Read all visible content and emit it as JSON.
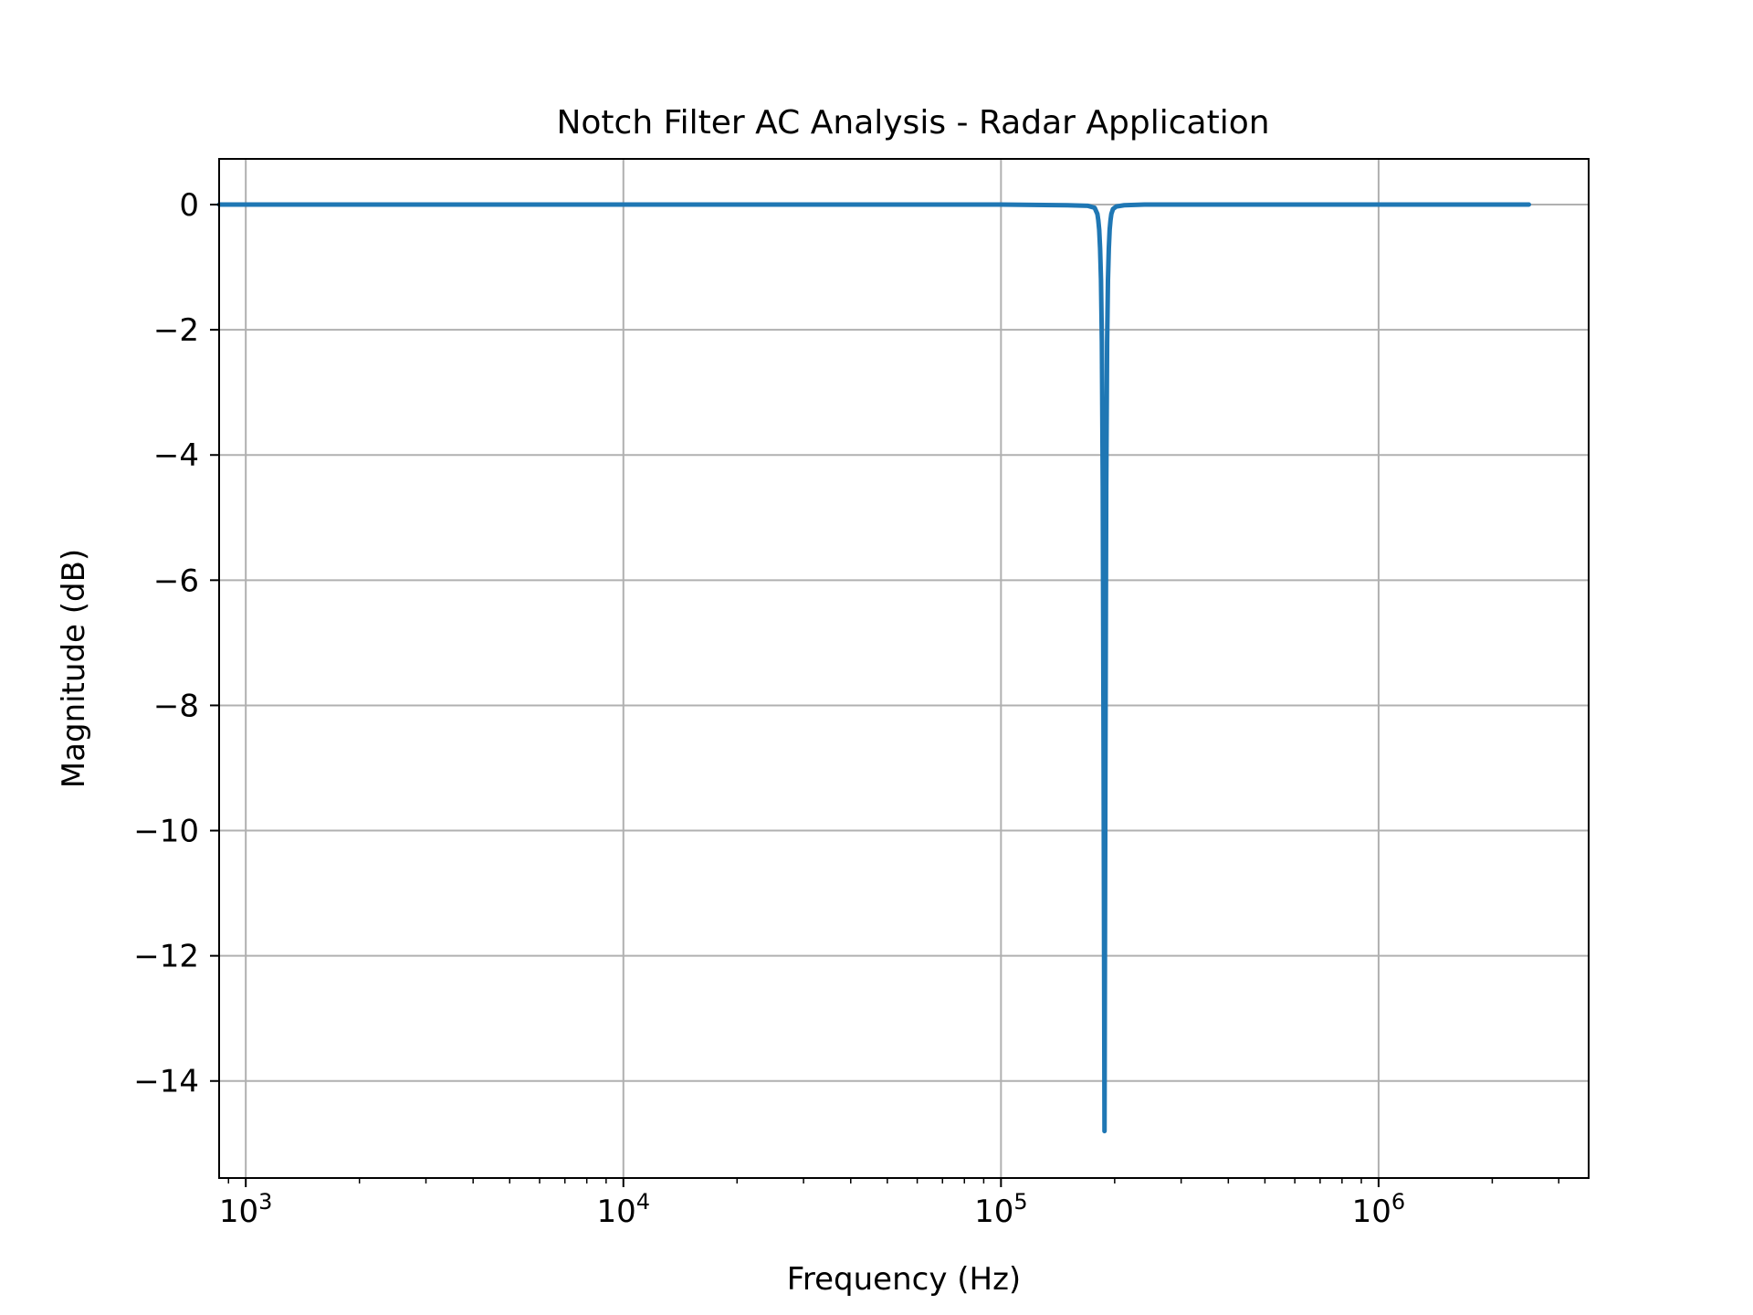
{
  "chart_data": {
    "type": "line",
    "title": "Notch Filter AC Analysis - Radar Application",
    "xlabel": "Frequency (Hz)",
    "ylabel": "Magnitude (dB)",
    "x_scale": "log",
    "xlim": [
      850,
      3600000
    ],
    "ylim": [
      -15.55,
      0.73
    ],
    "grid": true,
    "x_ticks": [
      {
        "value": 1000,
        "label": "10",
        "exp": "3"
      },
      {
        "value": 10000,
        "label": "10",
        "exp": "4"
      },
      {
        "value": 100000,
        "label": "10",
        "exp": "5"
      },
      {
        "value": 1000000,
        "label": "10",
        "exp": "6"
      }
    ],
    "y_ticks": [
      {
        "value": 0,
        "label": "0"
      },
      {
        "value": -2,
        "label": "−2"
      },
      {
        "value": -4,
        "label": "−4"
      },
      {
        "value": -6,
        "label": "−6"
      },
      {
        "value": -8,
        "label": "−8"
      },
      {
        "value": -10,
        "label": "−10"
      },
      {
        "value": -12,
        "label": "−12"
      },
      {
        "value": -14,
        "label": "−14"
      }
    ],
    "series": [
      {
        "color": "#1f77b4",
        "x": [
          850,
          10000,
          100000,
          150000,
          170000,
          177000,
          180000,
          181000,
          182000,
          183000,
          184000,
          185000,
          186000,
          187000,
          188000,
          189000,
          190000,
          191000,
          192000,
          193000,
          194000,
          195000,
          196000,
          198000,
          202000,
          212000,
          240000,
          500000,
          1000000,
          2500000
        ],
        "y": [
          0,
          0,
          0,
          -0.01,
          -0.02,
          -0.05,
          -0.15,
          -0.25,
          -0.4,
          -0.7,
          -1.2,
          -2.2,
          -4.5,
          -9.0,
          -14.8,
          -9.0,
          -4.5,
          -2.2,
          -1.2,
          -0.7,
          -0.4,
          -0.25,
          -0.15,
          -0.07,
          -0.03,
          -0.01,
          0,
          0,
          0,
          0
        ]
      }
    ]
  }
}
